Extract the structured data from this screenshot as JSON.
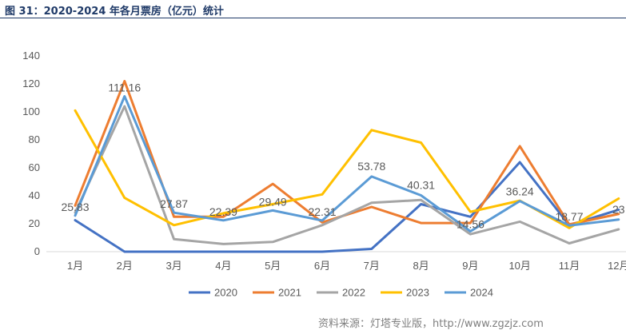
{
  "figure": {
    "title": "图 31：2020-2024 年各月票房（亿元）统计",
    "source": "资料来源：灯塔专业版，http://www.zgzjz.com"
  },
  "chart_data": {
    "type": "line",
    "title": "2020-2024 年各月票房（亿元）统计",
    "xlabel": "",
    "ylabel": "",
    "ylim": [
      0,
      140
    ],
    "yticks": [
      0,
      20,
      40,
      60,
      80,
      100,
      120,
      140
    ],
    "categories": [
      "1月",
      "2月",
      "3月",
      "4月",
      "5月",
      "6月",
      "7月",
      "8月",
      "9月",
      "10月",
      "11月",
      "12月"
    ],
    "series": [
      {
        "name": "2020",
        "color": "#4472C4",
        "values": [
          22.5,
          0,
          0,
          0,
          0,
          0,
          2,
          34,
          25,
          64,
          19,
          30
        ]
      },
      {
        "name": "2021",
        "color": "#ED7D31",
        "values": [
          33,
          122,
          25,
          25,
          48.5,
          21,
          32,
          20.5,
          20.5,
          75.5,
          19.5,
          27
        ]
      },
      {
        "name": "2022",
        "color": "#A5A5A5",
        "values": [
          28,
          104,
          9,
          5.5,
          7,
          19,
          35,
          37,
          12.5,
          21.5,
          6,
          16
        ]
      },
      {
        "name": "2023",
        "color": "#FFC000",
        "values": [
          101,
          38.5,
          19,
          27.5,
          34,
          41,
          87,
          78,
          28.5,
          36.5,
          17,
          38
        ]
      },
      {
        "name": "2024",
        "color": "#5B9BD5",
        "values": [
          25.83,
          111.16,
          27.87,
          22.39,
          29.49,
          22.31,
          53.78,
          40.31,
          14.56,
          36.24,
          18.77,
          23
        ]
      }
    ],
    "data_labels": [
      {
        "series": "2024",
        "index": 0,
        "text": "25.83"
      },
      {
        "series": "2024",
        "index": 1,
        "text": "111.16"
      },
      {
        "series": "2024",
        "index": 2,
        "text": "27.87"
      },
      {
        "series": "2024",
        "index": 3,
        "text": "22.39"
      },
      {
        "series": "2024",
        "index": 4,
        "text": "29.49"
      },
      {
        "series": "2024",
        "index": 5,
        "text": "22.31"
      },
      {
        "series": "2024",
        "index": 6,
        "text": "53.78"
      },
      {
        "series": "2024",
        "index": 7,
        "text": "40.31"
      },
      {
        "series": "2024",
        "index": 8,
        "text": "14.56"
      },
      {
        "series": "2024",
        "index": 9,
        "text": "36.24"
      },
      {
        "series": "2024",
        "index": 10,
        "text": "18.77"
      },
      {
        "series": "2024",
        "index": 11,
        "text": "23"
      }
    ],
    "legend": {
      "position": "bottom",
      "entries": [
        "2020",
        "2021",
        "2022",
        "2023",
        "2024"
      ]
    },
    "grid": false
  }
}
